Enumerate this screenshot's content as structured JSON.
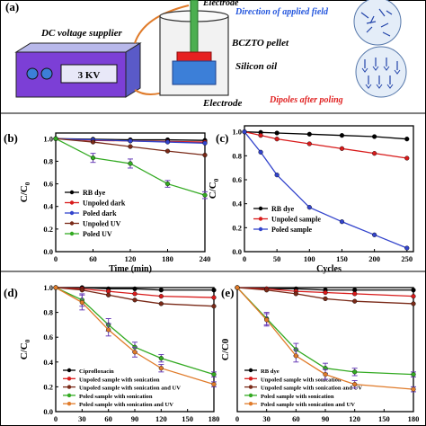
{
  "schematic": {
    "panel_label": "(a)",
    "supplier_label": "DC voltage supplier",
    "voltage_display": "3 KV",
    "electrode_top_label": "Electrode",
    "electrode_bottom_label": "Electrode",
    "pellet_label": "BCZTO pellet",
    "oil_label": "Silicon oil",
    "field_label": "Direction of applied field",
    "dipoles_label": "Dipoles after poling"
  },
  "chart_data": [
    {
      "panel": "(b)",
      "type": "line",
      "xlabel": "Time (min)",
      "ylabel": "C/C",
      "ylabel_sub": "0",
      "xlim": [
        0,
        240
      ],
      "ylim": [
        0.0,
        1.05
      ],
      "xticks": [
        "0",
        "60",
        "120",
        "180",
        "240"
      ],
      "yticks": [
        "0.0",
        "0.2",
        "0.4",
        "0.6",
        "0.8",
        "1.0"
      ],
      "legend_position": "bottom-left",
      "series": [
        {
          "name": "RB dye",
          "color": "#000000",
          "x": [
            0,
            60,
            120,
            180,
            240
          ],
          "y": [
            1.0,
            0.995,
            0.99,
            0.99,
            0.985
          ]
        },
        {
          "name": "Unpoled dark",
          "color": "#d81b1b",
          "x": [
            0,
            60,
            120,
            180,
            240
          ],
          "y": [
            1.0,
            0.985,
            0.98,
            0.975,
            0.97
          ]
        },
        {
          "name": "Poled dark",
          "color": "#3344cc",
          "x": [
            0,
            60,
            120,
            180,
            240
          ],
          "y": [
            1.0,
            0.99,
            0.98,
            0.97,
            0.96
          ]
        },
        {
          "name": "Unpoled UV",
          "color": "#7a2a18",
          "x": [
            0,
            60,
            120,
            180,
            240
          ],
          "y": [
            1.0,
            0.97,
            0.93,
            0.89,
            0.855
          ]
        },
        {
          "name": "Poled UV",
          "color": "#33aa22",
          "x": [
            0,
            60,
            120,
            180,
            240
          ],
          "y": [
            1.0,
            0.83,
            0.78,
            0.6,
            0.5
          ],
          "err": [
            0.0,
            0.04,
            0.04,
            0.03,
            0.03
          ]
        }
      ]
    },
    {
      "panel": "(c)",
      "type": "line",
      "xlabel": "Cycles",
      "ylabel": "C/C",
      "ylabel_sub": "0",
      "xlim": [
        0,
        260
      ],
      "ylim": [
        0.0,
        1.05
      ],
      "xticks": [
        "0",
        "50",
        "100",
        "150",
        "200",
        "250"
      ],
      "yticks": [
        "0.0",
        "0.2",
        "0.4",
        "0.6",
        "0.8",
        "1.0"
      ],
      "legend_position": "bottom-left",
      "series": [
        {
          "name": "RB dye",
          "color": "#000000",
          "x": [
            0,
            25,
            50,
            100,
            150,
            200,
            250
          ],
          "y": [
            1.0,
            0.995,
            0.99,
            0.98,
            0.97,
            0.96,
            0.94
          ]
        },
        {
          "name": "Unpoled sample",
          "color": "#d81b1b",
          "x": [
            0,
            25,
            50,
            100,
            150,
            200,
            250
          ],
          "y": [
            1.0,
            0.97,
            0.94,
            0.9,
            0.86,
            0.82,
            0.78
          ]
        },
        {
          "name": "Poled sample",
          "color": "#3344cc",
          "x": [
            0,
            25,
            50,
            100,
            150,
            200,
            250
          ],
          "y": [
            1.0,
            0.83,
            0.64,
            0.37,
            0.25,
            0.14,
            0.03
          ]
        }
      ]
    },
    {
      "panel": "(d)",
      "type": "line",
      "xlabel": "",
      "ylabel": "C/C",
      "ylabel_sub": "0",
      "xlim": [
        0,
        180
      ],
      "ylim": [
        0.0,
        1.0
      ],
      "xticks": [
        "0",
        "30",
        "60",
        "90",
        "120",
        "150",
        "180"
      ],
      "yticks": [
        "0.0",
        "0.2",
        "0.4",
        "0.6",
        "0.8",
        "1.0"
      ],
      "legend_position": "bottom-left",
      "series": [
        {
          "name": "Ciprofloxacin",
          "color": "#000000",
          "x": [
            0,
            30,
            60,
            90,
            120,
            180
          ],
          "y": [
            1.0,
            1.0,
            0.99,
            0.99,
            0.98,
            0.98
          ]
        },
        {
          "name": "Unpoled sample with sonication",
          "color": "#d81b1b",
          "x": [
            0,
            30,
            60,
            90,
            120,
            180
          ],
          "y": [
            1.0,
            0.99,
            0.97,
            0.95,
            0.93,
            0.92
          ]
        },
        {
          "name": "Unpoled sample with sonication and UV",
          "color": "#7a2a18",
          "x": [
            0,
            30,
            60,
            90,
            120,
            180
          ],
          "y": [
            1.0,
            0.98,
            0.94,
            0.9,
            0.87,
            0.85
          ]
        },
        {
          "name": "Poled sample with sonication",
          "color": "#33aa22",
          "x": [
            0,
            30,
            60,
            90,
            120,
            180
          ],
          "y": [
            1.0,
            0.9,
            0.7,
            0.52,
            0.43,
            0.3
          ],
          "err": [
            0.0,
            0.05,
            0.05,
            0.04,
            0.03,
            0.02
          ]
        },
        {
          "name": "Poled sample with sonication and UV",
          "color": "#e07b2a",
          "x": [
            0,
            30,
            60,
            90,
            120,
            180
          ],
          "y": [
            1.0,
            0.88,
            0.66,
            0.48,
            0.35,
            0.22
          ],
          "err": [
            0.0,
            0.06,
            0.05,
            0.04,
            0.03,
            0.02
          ]
        }
      ]
    },
    {
      "panel": "(e)",
      "type": "line",
      "xlabel": "",
      "ylabel": "C/C0",
      "ylabel_sub": "",
      "xlim": [
        0,
        180
      ],
      "ylim": [
        0.0,
        1.0
      ],
      "xticks": [
        "0",
        "30",
        "60",
        "90",
        "120",
        "150",
        "180"
      ],
      "yticks": [],
      "legend_position": "bottom-left",
      "series": [
        {
          "name": "RB dye",
          "color": "#000000",
          "x": [
            0,
            30,
            60,
            90,
            120,
            180
          ],
          "y": [
            1.0,
            0.99,
            0.99,
            0.98,
            0.98,
            0.98
          ]
        },
        {
          "name": "Unpoled sample with sonication",
          "color": "#d81b1b",
          "x": [
            0,
            30,
            60,
            90,
            120,
            180
          ],
          "y": [
            1.0,
            0.99,
            0.97,
            0.96,
            0.95,
            0.93
          ]
        },
        {
          "name": "Unpoled sample with sonication and UV",
          "color": "#7a2a18",
          "x": [
            0,
            30,
            60,
            90,
            120,
            180
          ],
          "y": [
            1.0,
            0.98,
            0.95,
            0.91,
            0.89,
            0.87
          ]
        },
        {
          "name": "Poled sample with sonication",
          "color": "#33aa22",
          "x": [
            0,
            30,
            60,
            90,
            120,
            180
          ],
          "y": [
            1.0,
            0.75,
            0.5,
            0.35,
            0.32,
            0.3
          ],
          "err": [
            0.0,
            0.05,
            0.05,
            0.04,
            0.03,
            0.02
          ]
        },
        {
          "name": "Poled sample with sonication and UV",
          "color": "#e07b2a",
          "x": [
            0,
            30,
            60,
            90,
            120,
            180
          ],
          "y": [
            1.0,
            0.74,
            0.45,
            0.3,
            0.22,
            0.18
          ],
          "err": [
            0.0,
            0.05,
            0.05,
            0.04,
            0.03,
            0.02
          ]
        }
      ]
    }
  ]
}
